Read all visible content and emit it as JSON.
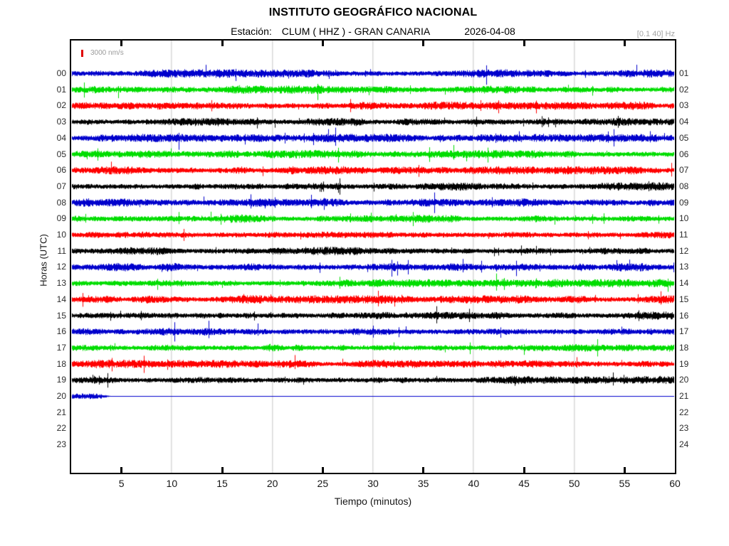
{
  "title": "INSTITUTO GEOGRÁFICO NACIONAL",
  "subtitle": {
    "station_label": "Estación:",
    "station": "CLUM ( HHZ ) - GRAN CANARIA",
    "date": "2026-04-08"
  },
  "filter_band": "[0.1 40] Hz",
  "scale_label": "3000 nm/s",
  "xlabel": "Tiempo (minutos)",
  "ylabel": "Horas (UTC)",
  "colors": {
    "trace_blue": "#0000CC",
    "trace_green": "#00DD00",
    "trace_red": "#FF0000",
    "trace_black": "#000000",
    "scale_bar": "#E00000",
    "gridline": "#D9D9D9",
    "frame": "#000000"
  },
  "chart_data": {
    "type": "helicorder",
    "title": "INSTITUTO GEOGRÁFICO NACIONAL",
    "station": "CLUM ( HHZ ) - GRAN CANARIA",
    "date": "2026-04-08",
    "filter_band_hz": "[0.1 40] Hz",
    "amplitude_scale": "3000 nm/s",
    "x_axis": {
      "label": "Tiempo (minutos)",
      "min": 0,
      "max": 60,
      "tick_step": 5,
      "tick_labels": [
        5,
        10,
        15,
        20,
        25,
        30,
        35,
        40,
        45,
        50,
        55,
        60
      ],
      "tick_marks": [
        5,
        15,
        25,
        35,
        45,
        55
      ],
      "gridlines": [
        10,
        20,
        30,
        40,
        50
      ]
    },
    "y_axis": {
      "label": "Horas (UTC)",
      "left_labels": [
        "00",
        "01",
        "02",
        "03",
        "04",
        "05",
        "06",
        "07",
        "08",
        "09",
        "10",
        "11",
        "12",
        "13",
        "14",
        "15",
        "16",
        "17",
        "18",
        "19",
        "20",
        "21",
        "22",
        "23"
      ],
      "right_labels": [
        "01",
        "02",
        "03",
        "04",
        "05",
        "06",
        "07",
        "08",
        "09",
        "10",
        "11",
        "12",
        "13",
        "14",
        "15",
        "16",
        "17",
        "18",
        "19",
        "20",
        "21",
        "22",
        "23",
        "24"
      ]
    },
    "color_cycle": [
      "#0000CC",
      "#00DD00",
      "#FF0000",
      "#000000"
    ],
    "rows": [
      {
        "hour": "00",
        "left_label": "00",
        "right_label": "01",
        "color": "#0000CC",
        "signal": "continuous-noise"
      },
      {
        "hour": "01",
        "left_label": "01",
        "right_label": "02",
        "color": "#00DD00",
        "signal": "continuous-noise"
      },
      {
        "hour": "02",
        "left_label": "02",
        "right_label": "03",
        "color": "#FF0000",
        "signal": "continuous-noise"
      },
      {
        "hour": "03",
        "left_label": "03",
        "right_label": "04",
        "color": "#000000",
        "signal": "continuous-noise"
      },
      {
        "hour": "04",
        "left_label": "04",
        "right_label": "05",
        "color": "#0000CC",
        "signal": "continuous-noise"
      },
      {
        "hour": "05",
        "left_label": "05",
        "right_label": "06",
        "color": "#00DD00",
        "signal": "continuous-noise"
      },
      {
        "hour": "06",
        "left_label": "06",
        "right_label": "07",
        "color": "#FF0000",
        "signal": "continuous-noise"
      },
      {
        "hour": "07",
        "left_label": "07",
        "right_label": "08",
        "color": "#000000",
        "signal": "continuous-noise"
      },
      {
        "hour": "08",
        "left_label": "08",
        "right_label": "09",
        "color": "#0000CC",
        "signal": "continuous-noise"
      },
      {
        "hour": "09",
        "left_label": "09",
        "right_label": "10",
        "color": "#00DD00",
        "signal": "continuous-noise"
      },
      {
        "hour": "10",
        "left_label": "10",
        "right_label": "11",
        "color": "#FF0000",
        "signal": "continuous-noise"
      },
      {
        "hour": "11",
        "left_label": "11",
        "right_label": "12",
        "color": "#000000",
        "signal": "continuous-noise"
      },
      {
        "hour": "12",
        "left_label": "12",
        "right_label": "13",
        "color": "#0000CC",
        "signal": "continuous-noise"
      },
      {
        "hour": "13",
        "left_label": "13",
        "right_label": "14",
        "color": "#00DD00",
        "signal": "continuous-noise"
      },
      {
        "hour": "14",
        "left_label": "14",
        "right_label": "15",
        "color": "#FF0000",
        "signal": "continuous-noise"
      },
      {
        "hour": "15",
        "left_label": "15",
        "right_label": "16",
        "color": "#000000",
        "signal": "continuous-noise"
      },
      {
        "hour": "16",
        "left_label": "16",
        "right_label": "17",
        "color": "#0000CC",
        "signal": "continuous-noise"
      },
      {
        "hour": "17",
        "left_label": "17",
        "right_label": "18",
        "color": "#00DD00",
        "signal": "continuous-noise"
      },
      {
        "hour": "18",
        "left_label": "18",
        "right_label": "19",
        "color": "#FF0000",
        "signal": "continuous-noise"
      },
      {
        "hour": "19",
        "left_label": "19",
        "right_label": "20",
        "color": "#000000",
        "signal": "continuous-noise"
      },
      {
        "hour": "20",
        "left_label": "20",
        "right_label": "21",
        "color": "#0000CC",
        "signal": "noise-then-flatline",
        "data_end_minute": 3.9
      },
      {
        "hour": "21",
        "left_label": "21",
        "right_label": "22",
        "color": "#00DD00",
        "signal": "no-data"
      },
      {
        "hour": "22",
        "left_label": "22",
        "right_label": "23",
        "color": "#FF0000",
        "signal": "no-data"
      },
      {
        "hour": "23",
        "left_label": "23",
        "right_label": "24",
        "color": "#000000",
        "signal": "no-data"
      }
    ]
  }
}
